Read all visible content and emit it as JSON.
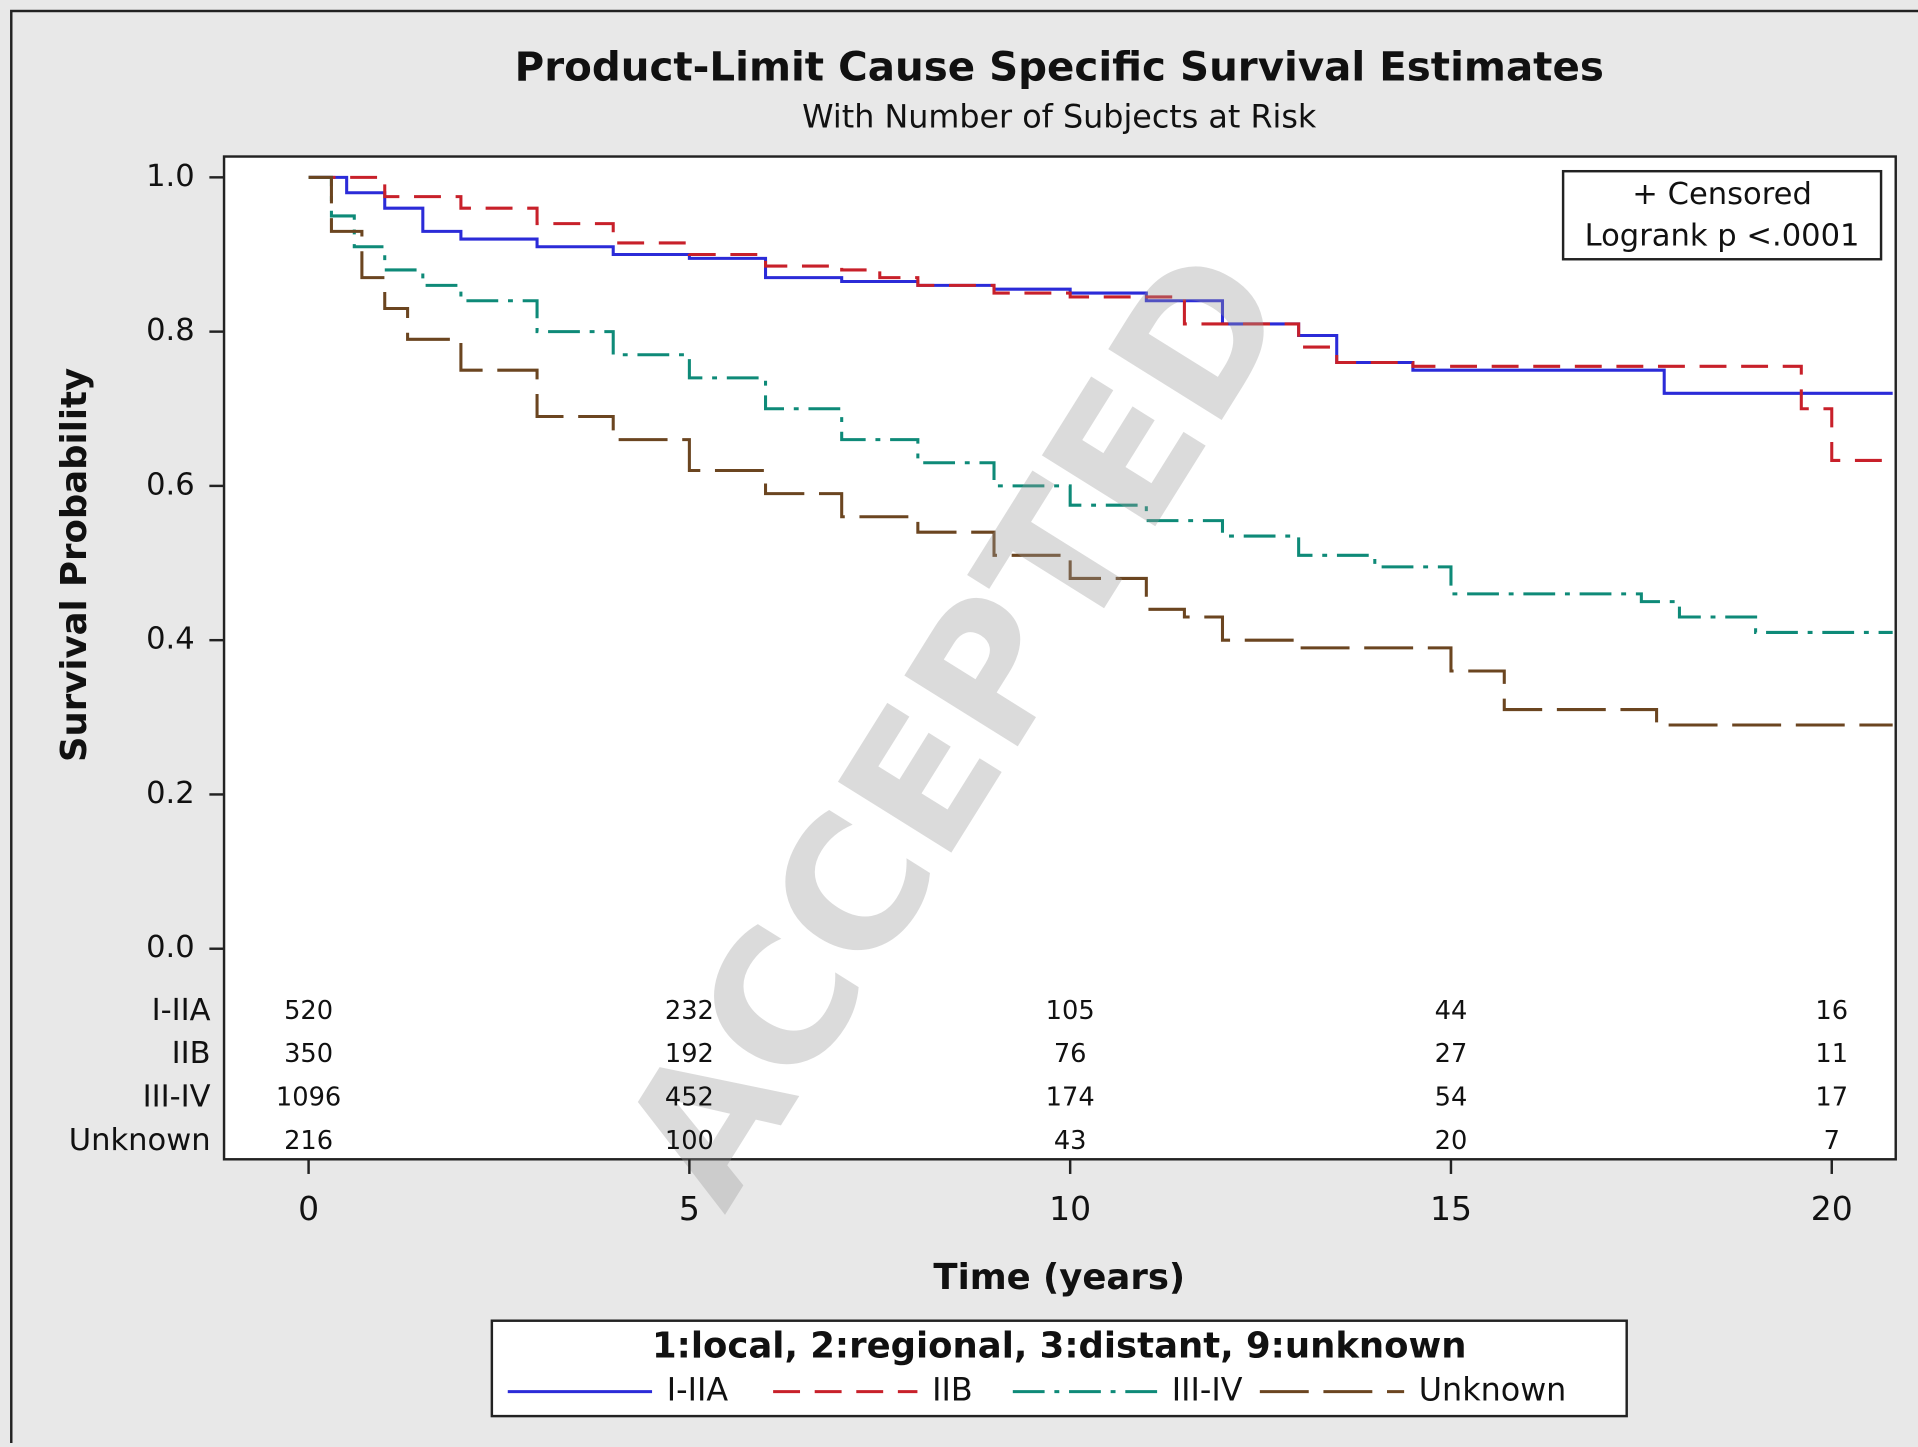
{
  "chart_data": {
    "type": "step-line",
    "title": "Product-Limit Cause Specific Survival Estimates",
    "subtitle": "With Number of Subjects at Risk",
    "xlabel": "Time (years)",
    "ylabel": "Survival Probability",
    "xlim": [
      -1.11,
      20.84
    ],
    "ylim": [
      -0.273,
      1.027
    ],
    "xticks": [
      0,
      5,
      10,
      15,
      20
    ],
    "yticks": [
      {
        "value": 0,
        "label": "0.0"
      },
      0.2,
      0.4,
      0.6,
      0.8,
      {
        "value": 1,
        "label": "1.0"
      }
    ],
    "annotations": [
      "+ Censored",
      "Logrank p <.0001"
    ],
    "watermark": "ACCEPTED",
    "legend_title": "1:local, 2:regional, 3:distant, 9:unknown",
    "series": [
      {
        "name": "I-IIA",
        "color": "#2b2bd8",
        "dash": "none",
        "x": [
          0,
          0.5,
          1,
          1.5,
          2,
          3,
          4,
          5,
          6,
          7,
          8,
          9,
          10,
          11,
          12,
          13,
          13.5,
          14.5,
          17.8,
          20.8
        ],
        "values": [
          1.0,
          0.98,
          0.96,
          0.93,
          0.92,
          0.91,
          0.9,
          0.895,
          0.87,
          0.865,
          0.86,
          0.855,
          0.85,
          0.84,
          0.81,
          0.795,
          0.76,
          0.75,
          0.72,
          0.72
        ],
        "at_risk": [
          520,
          232,
          105,
          44,
          16
        ]
      },
      {
        "name": "IIB",
        "color": "#c8202a",
        "dash": "22 12",
        "x": [
          0,
          1,
          2,
          3,
          4,
          5,
          6,
          7,
          7.5,
          8,
          9,
          10,
          11.5,
          13,
          13.5,
          14.5,
          19.6,
          20,
          20.8
        ],
        "values": [
          1.0,
          0.975,
          0.96,
          0.94,
          0.915,
          0.9,
          0.885,
          0.88,
          0.87,
          0.86,
          0.85,
          0.845,
          0.81,
          0.78,
          0.76,
          0.755,
          0.7,
          0.633,
          0.633
        ],
        "at_risk": [
          350,
          192,
          76,
          27,
          11
        ]
      },
      {
        "name": "III-IV",
        "color": "#0e8a78",
        "dash": "26 8 4 8",
        "x": [
          0,
          0.3,
          0.6,
          1,
          1.5,
          2,
          3,
          4,
          5,
          6,
          7,
          8,
          9,
          10,
          11,
          12,
          13,
          14,
          15,
          16,
          17.5,
          18,
          19,
          20.8
        ],
        "values": [
          1.0,
          0.95,
          0.91,
          0.88,
          0.86,
          0.84,
          0.8,
          0.77,
          0.74,
          0.7,
          0.66,
          0.63,
          0.6,
          0.575,
          0.555,
          0.535,
          0.51,
          0.495,
          0.46,
          0.46,
          0.45,
          0.43,
          0.41,
          0.41
        ],
        "at_risk": [
          1096,
          452,
          174,
          54,
          17
        ]
      },
      {
        "name": "Unknown",
        "color": "#6b4520",
        "dash": "40 12",
        "x": [
          0,
          0.3,
          0.7,
          1,
          1.3,
          2,
          3,
          4,
          5,
          6,
          7,
          8,
          9,
          10,
          11,
          11.5,
          12,
          13,
          15,
          15.7,
          17.7,
          20.8
        ],
        "values": [
          1.0,
          0.93,
          0.87,
          0.83,
          0.79,
          0.75,
          0.69,
          0.66,
          0.62,
          0.59,
          0.56,
          0.54,
          0.51,
          0.48,
          0.44,
          0.43,
          0.4,
          0.39,
          0.36,
          0.31,
          0.29,
          0.29
        ],
        "at_risk": [
          216,
          100,
          43,
          20,
          7
        ]
      }
    ]
  }
}
